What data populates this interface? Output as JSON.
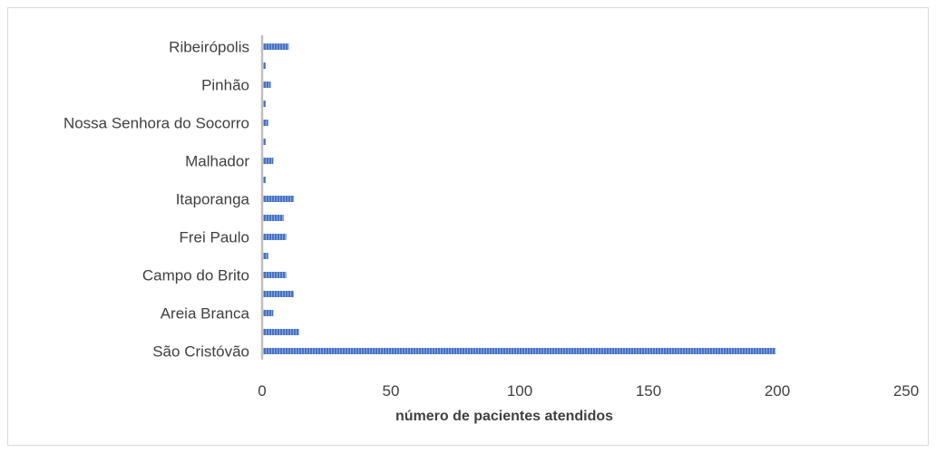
{
  "chart_data": {
    "type": "bar",
    "orientation": "horizontal",
    "categories": [
      "São Cristóvão",
      "",
      "Areia Branca",
      "",
      "Campo do Brito",
      "",
      "Frei Paulo",
      "",
      "Itaporanga",
      "",
      "Malhador",
      "",
      "Nossa Senhora do Socorro",
      "",
      "Pinhão",
      "",
      "Ribeirópolis"
    ],
    "values": [
      199,
      14,
      4,
      12,
      9,
      2,
      9,
      8,
      12,
      1,
      4,
      1,
      2,
      1,
      3,
      1,
      10
    ],
    "xlabel": "número de pacientes atendidos",
    "ylabel": "",
    "xlim": [
      0,
      250
    ],
    "xticks": [
      "0",
      "50",
      "100",
      "150",
      "200",
      "250"
    ],
    "grid": false,
    "legend": "none",
    "bar_color": "#4472c4"
  }
}
